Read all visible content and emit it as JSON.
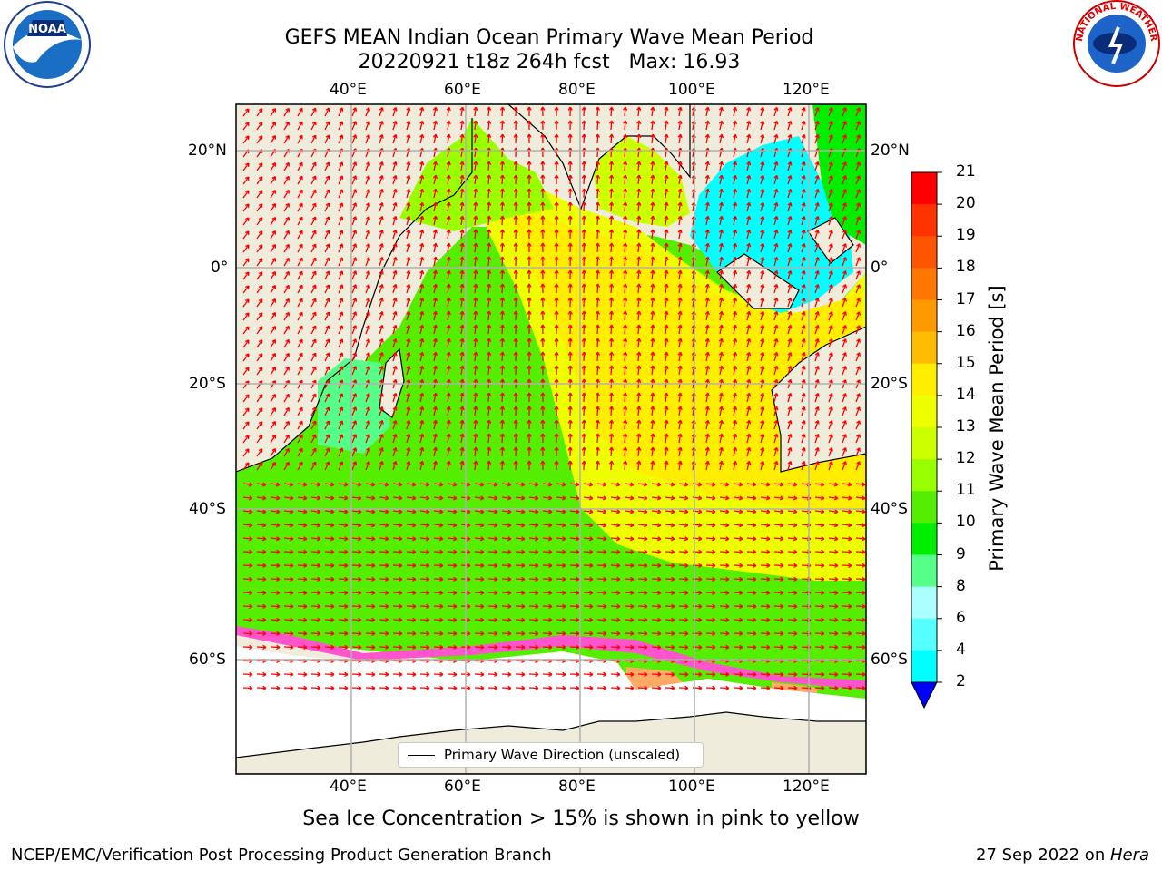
{
  "title": {
    "line1": "GEFS MEAN Indian Ocean Primary Wave Mean Period",
    "line2": "20220921 t18z 264h fcst   Max: 16.93"
  },
  "axes": {
    "lon_top": [
      "40°E",
      "60°E",
      "80°E",
      "100°E",
      "120°E"
    ],
    "lon_bottom": [
      "40°E",
      "60°E",
      "80°E",
      "100°E",
      "120°E"
    ],
    "lat_left": [
      "20°N",
      "0°",
      "20°S",
      "40°S",
      "60°S"
    ],
    "lat_right": [
      "20°N",
      "0°",
      "20°S",
      "40°S",
      "60°S"
    ]
  },
  "colorbar": {
    "label": "Primary Wave Mean Period [s]",
    "ticks": [
      "21",
      "20",
      "19",
      "18",
      "17",
      "16",
      "15",
      "14",
      "13",
      "12",
      "11",
      "10",
      "9",
      "8",
      "6",
      "4",
      "2"
    ],
    "colors": [
      "#ff0000",
      "#ff3300",
      "#ff5500",
      "#ff7700",
      "#ff9900",
      "#ffbb00",
      "#ffee00",
      "#eeff00",
      "#ccff00",
      "#99ff00",
      "#55ee00",
      "#00ee00",
      "#55ff88",
      "#aaffff",
      "#55ffff",
      "#00ffff",
      "#00aaff",
      "#0000ff"
    ]
  },
  "legend": {
    "label": "Primary Wave Direction (unscaled)"
  },
  "note": "Sea Ice Concentration > 15% is shown in pink to yellow",
  "footer": {
    "left": "NCEP/EMC/Verification Post Processing Product Generation Branch",
    "right_date": "27 Sep 2022 on ",
    "right_host": "Hera"
  },
  "logos": {
    "noaa": "NOAA",
    "nws": "NATIONAL WEATHER SERVICE"
  },
  "colors": {
    "land": "#efecdc",
    "arrow": "#ff0000",
    "grid": "#b0b0b0"
  }
}
